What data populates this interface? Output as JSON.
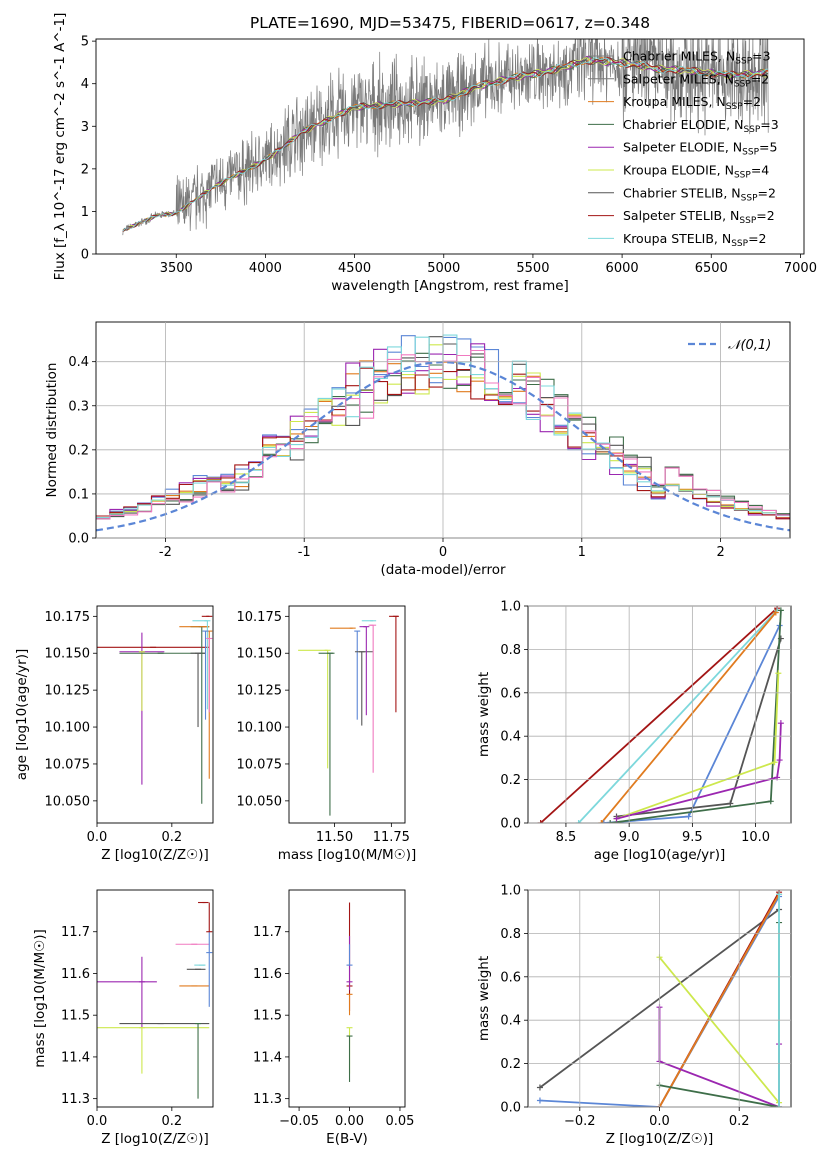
{
  "chart_data": [
    {
      "id": "spectrum",
      "type": "line",
      "title": "PLATE=1690, MJD=53475, FIBERID=0617, z=0.348",
      "xlabel": "wavelength [Angstrom, rest frame]",
      "ylabel": "Flux [f_λ 10^-17 erg cm^-2 s^-1 A^-1]",
      "xlim": [
        3050,
        7020
      ],
      "ylim": [
        0,
        5.05
      ],
      "xticks": [
        3500,
        4000,
        4500,
        5000,
        5500,
        6000,
        6500,
        7000
      ],
      "yticks": [
        0,
        1,
        2,
        3,
        4,
        5
      ],
      "grid": false,
      "legend": "top-right",
      "data_note_x": [
        3200,
        3400,
        3500,
        3700,
        3900,
        4000,
        4200,
        4500,
        5000,
        5200,
        5400,
        5600,
        5800,
        6000,
        6200,
        6400,
        6600,
        6800
      ],
      "data_note_y": [
        0.55,
        0.92,
        0.95,
        1.55,
        2.0,
        2.2,
        2.85,
        3.45,
        3.6,
        3.95,
        4.15,
        4.3,
        4.55,
        4.5,
        4.35,
        4.3,
        4.2,
        4.25
      ],
      "series": [
        {
          "name": "Chabrier MILES, N_SSP=3",
          "color": "#808080"
        },
        {
          "name": "Salpeter MILES, N_SSP=2",
          "color": "#7a7a7a"
        },
        {
          "name": "Kroupa MILES, N_SSP=2",
          "color": "#e07b1f"
        },
        {
          "name": "Chabrier ELODIE, N_SSP=3",
          "color": "#3e6e49"
        },
        {
          "name": "Salpeter ELODIE, N_SSP=5",
          "color": "#9b27b0"
        },
        {
          "name": "Kroupa ELODIE, N_SSP=4",
          "color": "#cde84d"
        },
        {
          "name": "Chabrier STELIB, N_SSP=2",
          "color": "#555555"
        },
        {
          "name": "Salpeter STELIB, N_SSP=2",
          "color": "#a31515"
        },
        {
          "name": "Kroupa STELIB, N_SSP=2",
          "color": "#7dd8dc"
        }
      ]
    },
    {
      "id": "residuals",
      "type": "bar",
      "xlabel": "(data-model)/error",
      "ylabel": "Normed distribution",
      "xlim": [
        -2.5,
        2.5
      ],
      "ylim": [
        0,
        0.49
      ],
      "xticks": [
        -2,
        -1,
        0,
        1,
        2
      ],
      "yticks": [
        0.0,
        0.1,
        0.2,
        0.3,
        0.4
      ],
      "grid": true,
      "legend": "top-right",
      "gaussian": {
        "name": "𝒩(0,1)",
        "color": "#5b86d6"
      },
      "hist_colors": [
        "#5b86d6",
        "#e07b1f",
        "#3e6e49",
        "#9b27b0",
        "#cde84d",
        "#555555",
        "#a31515",
        "#7dd8dc",
        "#f07ac0"
      ]
    },
    {
      "id": "age_vs_Z",
      "type": "scatter",
      "xlabel": "Z [log10(Z/Z☉)]",
      "ylabel": "age  [log10(age/yr)]",
      "xlim": [
        0.0,
        0.31
      ],
      "ylim": [
        10.035,
        10.182
      ],
      "xticks": [
        0.0,
        0.2
      ],
      "yticks": [
        10.05,
        10.075,
        10.1,
        10.125,
        10.15,
        10.175
      ],
      "points": [
        {
          "x": 0.15,
          "y": 10.154,
          "xerr": [
            0.15,
            0.15
          ],
          "yerr": [
            0.0,
            0.0
          ],
          "color": "#a31515"
        },
        {
          "x": 0.12,
          "y": 10.151,
          "xerr": [
            0.06,
            0.06
          ],
          "yerr": [
            0.09,
            0.013
          ],
          "color": "#9b27b0"
        },
        {
          "x": 0.12,
          "y": 10.151,
          "xerr": [
            0.0,
            0.0
          ],
          "yerr": [
            0.04,
            0.0
          ],
          "color": "#cde84d"
        },
        {
          "x": 0.17,
          "y": 10.15,
          "xerr": [
            0.11,
            0.12
          ],
          "yerr": [
            0.0,
            0.0
          ],
          "color": "#3e6e49"
        },
        {
          "x": 0.27,
          "y": 10.15,
          "xerr": [
            0.02,
            0.02
          ],
          "yerr": [
            0.05,
            0.0
          ],
          "color": "#555555"
        },
        {
          "x": 0.28,
          "y": 10.168,
          "xerr": [
            0.03,
            0.02
          ],
          "yerr": [
            0.12,
            0.0
          ],
          "color": "#3e6e49"
        },
        {
          "x": 0.29,
          "y": 10.168,
          "xerr": [
            0.07,
            0.01
          ],
          "yerr": [
            0.0,
            0.0
          ],
          "color": "#e07b1f"
        },
        {
          "x": 0.3,
          "y": 10.165,
          "xerr": [
            0.0,
            0.0
          ],
          "yerr": [
            0.1,
            0.0
          ],
          "color": "#e07b1f"
        },
        {
          "x": 0.295,
          "y": 10.172,
          "xerr": [
            0.04,
            0.0
          ],
          "yerr": [
            0.06,
            0.0
          ],
          "color": "#7dd8dc"
        },
        {
          "x": 0.3,
          "y": 10.175,
          "xerr": [
            0.02,
            0.0
          ],
          "yerr": [
            0.0,
            0.0
          ],
          "color": "#a31515"
        },
        {
          "x": 0.3,
          "y": 10.16,
          "xerr": [
            0.0,
            0.0
          ],
          "yerr": [
            0.05,
            0.0
          ],
          "color": "#f07ac0"
        },
        {
          "x": 0.29,
          "y": 10.165,
          "xerr": [
            0.0,
            0.0
          ],
          "yerr": [
            0.06,
            0.0
          ],
          "color": "#5b86d6"
        }
      ]
    },
    {
      "id": "age_vs_mass",
      "type": "scatter",
      "xlabel": "mass [log10(M/M☉)]",
      "ylabel": "",
      "xlim": [
        11.3,
        11.81
      ],
      "ylim": [
        10.035,
        10.182
      ],
      "xticks": [
        11.5,
        11.75
      ],
      "yticks": [
        10.05,
        10.075,
        10.1,
        10.125,
        10.15,
        10.175
      ],
      "points": [
        {
          "x": 11.47,
          "y": 10.152,
          "xerr": [
            0.13,
            0.0
          ],
          "yerr": [
            0.08,
            0.0
          ],
          "color": "#cde84d"
        },
        {
          "x": 11.48,
          "y": 10.15,
          "xerr": [
            0.05,
            0.02
          ],
          "yerr": [
            0.11,
            0.0
          ],
          "color": "#3e6e49"
        },
        {
          "x": 11.58,
          "y": 10.167,
          "xerr": [
            0.1,
            0.0
          ],
          "yerr": [
            0.0,
            0.0
          ],
          "color": "#e07b1f"
        },
        {
          "x": 11.6,
          "y": 10.165,
          "xerr": [
            0.0,
            0.0
          ],
          "yerr": [
            0.06,
            0.0
          ],
          "color": "#5b86d6"
        },
        {
          "x": 11.62,
          "y": 10.151,
          "xerr": [
            0.03,
            0.05
          ],
          "yerr": [
            0.05,
            0.0
          ],
          "color": "#555555"
        },
        {
          "x": 11.64,
          "y": 10.168,
          "xerr": [
            0.03,
            0.0
          ],
          "yerr": [
            0.06,
            0.0
          ],
          "color": "#9b27b0"
        },
        {
          "x": 11.67,
          "y": 10.169,
          "xerr": [
            0.02,
            0.0
          ],
          "yerr": [
            0.1,
            0.0
          ],
          "color": "#f07ac0"
        },
        {
          "x": 11.67,
          "y": 10.172,
          "xerr": [
            0.05,
            0.0
          ],
          "yerr": [
            0.0,
            0.0
          ],
          "color": "#7dd8dc"
        },
        {
          "x": 11.77,
          "y": 10.175,
          "xerr": [
            0.03,
            0.01
          ],
          "yerr": [
            0.065,
            0.0
          ],
          "color": "#a31515"
        }
      ]
    },
    {
      "id": "weight_vs_age",
      "type": "line",
      "xlabel": "age  [log10(age/yr)]",
      "ylabel": "mass weight",
      "xlim": [
        8.2,
        10.28
      ],
      "ylim": [
        0,
        1.0
      ],
      "xticks": [
        8.5,
        9.0,
        9.5,
        10.0
      ],
      "yticks": [
        0.0,
        0.2,
        0.4,
        0.6,
        0.8,
        1.0
      ],
      "grid": true,
      "series": [
        {
          "color": "#a31515",
          "x": [
            8.3,
            10.17
          ],
          "y": [
            0.0,
            0.99
          ]
        },
        {
          "color": "#7dd8dc",
          "x": [
            8.6,
            10.17
          ],
          "y": [
            0.0,
            0.98
          ]
        },
        {
          "color": "#e07b1f",
          "x": [
            8.78,
            10.16
          ],
          "y": [
            0.0,
            0.97
          ]
        },
        {
          "color": "#5b86d6",
          "x": [
            8.8,
            9.47,
            10.19
          ],
          "y": [
            0.0,
            0.03,
            0.91
          ]
        },
        {
          "color": "#555555",
          "x": [
            8.9,
            9.8,
            10.2
          ],
          "y": [
            0.03,
            0.09,
            0.85
          ]
        },
        {
          "color": "#3e6e49",
          "x": [
            8.85,
            10.12,
            10.2
          ],
          "y": [
            0.0,
            0.1,
            0.98
          ]
        },
        {
          "color": "#cde84d",
          "x": [
            8.9,
            10.15,
            10.18
          ],
          "y": [
            0.02,
            0.28,
            0.69
          ]
        },
        {
          "color": "#9b27b0",
          "x": [
            8.9,
            10.17,
            10.19,
            10.2
          ],
          "y": [
            0.02,
            0.21,
            0.29,
            0.46
          ]
        }
      ]
    },
    {
      "id": "mass_vs_Z",
      "type": "scatter",
      "xlabel": "Z [log10(Z/Z☉)]",
      "ylabel": "mass [log10(M/M☉)]",
      "xlim": [
        0.0,
        0.31
      ],
      "ylim": [
        11.28,
        11.8
      ],
      "xticks": [
        0.0,
        0.2
      ],
      "yticks": [
        11.3,
        11.4,
        11.5,
        11.6,
        11.7
      ],
      "points": [
        {
          "x": 0.12,
          "y": 11.58,
          "xerr": [
            0.12,
            0.04
          ],
          "yerr": [
            0.11,
            0.06
          ],
          "color": "#9b27b0"
        },
        {
          "x": 0.12,
          "y": 11.47,
          "xerr": [
            0.12,
            0.18
          ],
          "yerr": [
            0.11,
            0.0
          ],
          "color": "#cde84d"
        },
        {
          "x": 0.17,
          "y": 11.48,
          "xerr": [
            0.11,
            0.13
          ],
          "yerr": [
            0.0,
            0.0
          ],
          "color": "#555555"
        },
        {
          "x": 0.27,
          "y": 11.48,
          "xerr": [
            0.0,
            0.0
          ],
          "yerr": [
            0.18,
            0.0
          ],
          "color": "#3e6e49"
        },
        {
          "x": 0.26,
          "y": 11.57,
          "xerr": [
            0.04,
            0.04
          ],
          "yerr": [
            0.0,
            0.0
          ],
          "color": "#e07b1f"
        },
        {
          "x": 0.27,
          "y": 11.61,
          "xerr": [
            0.03,
            0.02
          ],
          "yerr": [
            0.0,
            0.0
          ],
          "color": "#555555"
        },
        {
          "x": 0.28,
          "y": 11.62,
          "xerr": [
            0.02,
            0.01
          ],
          "yerr": [
            0.0,
            0.0
          ],
          "color": "#7dd8dc"
        },
        {
          "x": 0.26,
          "y": 11.67,
          "xerr": [
            0.05,
            0.04
          ],
          "yerr": [
            0.0,
            0.0
          ],
          "color": "#f07ac0"
        },
        {
          "x": 0.3,
          "y": 11.65,
          "xerr": [
            0.0,
            0.0
          ],
          "yerr": [
            0.13,
            0.05
          ],
          "color": "#5b86d6"
        },
        {
          "x": 0.29,
          "y": 11.77,
          "xerr": [
            0.02,
            0.0
          ],
          "yerr": [
            0.0,
            0.0
          ],
          "color": "#a31515"
        },
        {
          "x": 0.3,
          "y": 11.7,
          "xerr": [
            0.0,
            0.0
          ],
          "yerr": [
            0.0,
            0.07
          ],
          "color": "#a31515"
        }
      ]
    },
    {
      "id": "mass_vs_EBV",
      "type": "scatter",
      "xlabel": "E(B-V)",
      "ylabel": "",
      "xlim": [
        -0.06,
        0.055
      ],
      "ylim": [
        11.28,
        11.8
      ],
      "xticks": [
        -0.05,
        0.0,
        0.05
      ],
      "xticklabels": [
        "−0.05",
        "0.00",
        "0.05"
      ],
      "yticks": [
        11.3,
        11.4,
        11.5,
        11.6,
        11.7
      ],
      "points": [
        {
          "x": 0.0,
          "y": 11.57,
          "yerr": [
            0.06,
            0.2
          ],
          "color": "#a31515"
        },
        {
          "x": 0.0,
          "y": 11.58,
          "yerr": [
            0.02,
            0.11
          ],
          "color": "#9b27b0"
        },
        {
          "x": 0.0,
          "y": 11.47,
          "yerr": [
            0.11,
            0.0
          ],
          "color": "#cde84d"
        },
        {
          "x": 0.0,
          "y": 11.45,
          "yerr": [
            0.11,
            0.0
          ],
          "color": "#3e6e49"
        },
        {
          "x": 0.0,
          "y": 11.62,
          "yerr": [
            0.0,
            0.05
          ],
          "color": "#5b86d6"
        },
        {
          "x": 0.0,
          "y": 11.55,
          "yerr": [
            0.05,
            0.0
          ],
          "color": "#e07b1f"
        }
      ]
    },
    {
      "id": "weight_vs_Z",
      "type": "line",
      "xlabel": "Z [log10(Z/Z☉)]",
      "ylabel": "mass weight",
      "xlim": [
        -0.33,
        0.33
      ],
      "ylim": [
        0,
        1.0
      ],
      "xticks": [
        -0.2,
        0.0,
        0.2
      ],
      "xticklabels": [
        "−0.2",
        "0.0",
        "0.2"
      ],
      "yticks": [
        0.0,
        0.2,
        0.4,
        0.6,
        0.8,
        1.0
      ],
      "grid": true,
      "series": [
        {
          "color": "#555555",
          "x": [
            -0.3,
            0.3
          ],
          "y": [
            0.09,
            0.91
          ]
        },
        {
          "color": "#5b86d6",
          "x": [
            -0.3,
            0.0,
            0.3
          ],
          "y": [
            0.03,
            0.0,
            0.97
          ]
        },
        {
          "color": "#a31515",
          "x": [
            0.0,
            0.3
          ],
          "y": [
            0.0,
            0.99
          ]
        },
        {
          "color": "#e07b1f",
          "x": [
            0.0,
            0.3
          ],
          "y": [
            0.0,
            0.98
          ]
        },
        {
          "color": "#9b27b0",
          "x": [
            0.0,
            0.0,
            0.3,
            0.3
          ],
          "y": [
            0.46,
            0.21,
            0.0,
            0.29
          ]
        },
        {
          "color": "#cde84d",
          "x": [
            0.0,
            0.3
          ],
          "y": [
            0.69,
            0.02
          ]
        },
        {
          "color": "#3e6e49",
          "x": [
            0.0,
            0.3,
            0.3
          ],
          "y": [
            0.1,
            0.0,
            0.85
          ]
        },
        {
          "color": "#7dd8dc",
          "x": [
            0.3,
            0.3
          ],
          "y": [
            0.0,
            0.98
          ]
        }
      ]
    }
  ]
}
